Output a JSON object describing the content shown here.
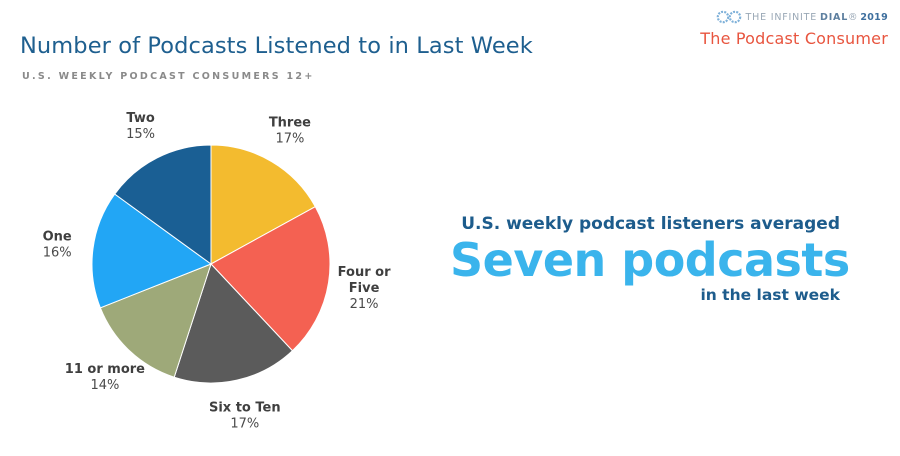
{
  "header": {
    "title": "Number of Podcasts Listened to in Last Week",
    "subtitle": "U.S. WEEKLY PODCAST CONSUMERS 12+"
  },
  "brand": {
    "the": "THE",
    "infinite": "INFINITE",
    "dial": "DIAL",
    "registered": "®",
    "year": "2019",
    "report": "The Podcast Consumer"
  },
  "callout": {
    "line1": "U.S. weekly podcast listeners averaged",
    "main": "Seven podcasts",
    "line3": "in the last week"
  },
  "colors": {
    "title": "#1e5f8f",
    "accent_blue": "#3ab4ec",
    "report_red": "#e8553f"
  },
  "chart_data": {
    "type": "pie",
    "start_angle_deg": 0,
    "direction": "clockwise",
    "slices": [
      {
        "label": [
          "Three"
        ],
        "pct": "17%",
        "value": 17,
        "color": "#f3bb2f"
      },
      {
        "label": [
          "Four or",
          "Five"
        ],
        "pct": "21%",
        "value": 21,
        "color": "#f46152"
      },
      {
        "label": [
          "Six to Ten"
        ],
        "pct": "17%",
        "value": 17,
        "color": "#5b5b5b"
      },
      {
        "label": [
          "11 or more"
        ],
        "pct": "14%",
        "value": 14,
        "color": "#9ea979"
      },
      {
        "label": [
          "One"
        ],
        "pct": "16%",
        "value": 16,
        "color": "#22a6f5"
      },
      {
        "label": [
          "Two"
        ],
        "pct": "15%",
        "value": 15,
        "color": "#1a5f94"
      }
    ]
  }
}
